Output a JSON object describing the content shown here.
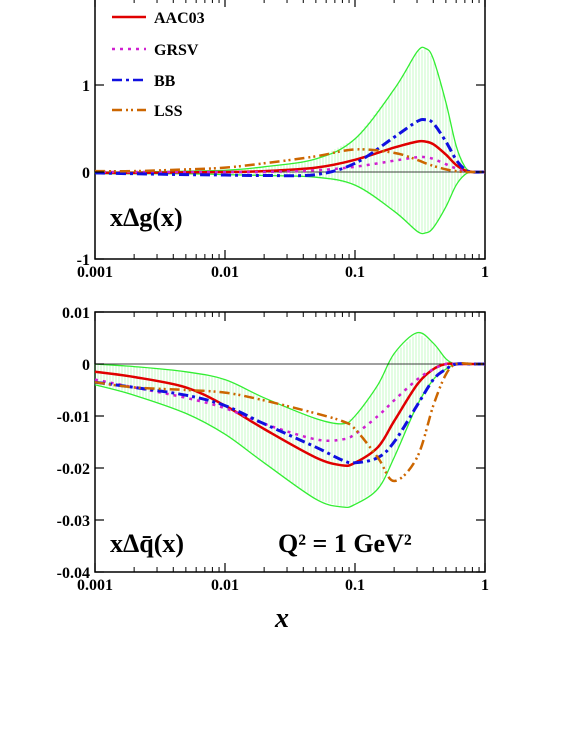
{
  "colors": {
    "AAC03": "#e00000",
    "GRSV": "#d020d0",
    "BB": "#1010e0",
    "LSS": "#cc6600",
    "uncertainty_band": "#33ee33"
  },
  "chart_data": [
    {
      "type": "line",
      "panel_label": "xΔg(x)",
      "xscale": "log",
      "xlim": [
        0.001,
        1
      ],
      "ylim": [
        -1,
        2
      ],
      "x_ticks": [
        "0.001",
        "0.01",
        "0.1",
        "1"
      ],
      "y_ticks": [
        "-1",
        "0",
        "1"
      ],
      "legend": [
        "AAC03",
        "GRSV",
        "BB",
        "LSS"
      ],
      "legend_position": "top-left",
      "x": [
        0.001,
        0.002,
        0.005,
        0.01,
        0.02,
        0.05,
        0.1,
        0.2,
        0.3,
        0.35,
        0.4,
        0.5,
        0.6,
        0.7,
        0.8,
        1.0
      ],
      "series": [
        {
          "name": "AAC03",
          "values": [
            -0.01,
            -0.01,
            -0.005,
            0.0,
            0.01,
            0.05,
            0.14,
            0.28,
            0.35,
            0.35,
            0.32,
            0.2,
            0.08,
            0.02,
            0.0,
            0.0
          ]
        },
        {
          "name": "GRSV",
          "values": [
            0.0,
            0.0,
            0.0,
            0.0,
            0.0,
            0.02,
            0.06,
            0.13,
            0.17,
            0.17,
            0.15,
            0.09,
            0.04,
            0.01,
            0.0,
            0.0
          ]
        },
        {
          "name": "BB",
          "values": [
            -0.01,
            -0.02,
            -0.03,
            -0.035,
            -0.04,
            -0.03,
            0.1,
            0.4,
            0.58,
            0.6,
            0.56,
            0.35,
            0.14,
            0.03,
            0.0,
            0.0
          ]
        },
        {
          "name": "LSS",
          "values": [
            0.01,
            0.01,
            0.03,
            0.05,
            0.1,
            0.18,
            0.26,
            0.22,
            0.14,
            0.1,
            0.07,
            0.03,
            0.01,
            0.0,
            0.0,
            0.0
          ]
        }
      ],
      "band": {
        "upper": [
          0.0,
          0.0,
          0.01,
          0.02,
          0.06,
          0.15,
          0.38,
          0.95,
          1.38,
          1.42,
          1.3,
          0.8,
          0.3,
          0.06,
          0.0,
          0.0
        ],
        "lower": [
          -0.02,
          -0.02,
          -0.02,
          -0.03,
          -0.04,
          -0.06,
          -0.15,
          -0.45,
          -0.68,
          -0.7,
          -0.64,
          -0.4,
          -0.15,
          -0.03,
          0.0,
          0.0
        ]
      }
    },
    {
      "type": "line",
      "panel_label": "xΔq̄(x)",
      "annotation": "Q² = 1 GeV²",
      "xscale": "log",
      "xlim": [
        0.001,
        1
      ],
      "ylim": [
        -0.04,
        0.01
      ],
      "x_ticks": [
        "0.001",
        "0.01",
        "0.1",
        "1"
      ],
      "y_ticks": [
        "-0.04",
        "-0.03",
        "-0.02",
        "-0.01",
        "0",
        "0.01"
      ],
      "xlabel": "x",
      "x": [
        0.001,
        0.002,
        0.005,
        0.01,
        0.02,
        0.05,
        0.08,
        0.1,
        0.15,
        0.2,
        0.3,
        0.4,
        0.5,
        0.6,
        0.8,
        1.0
      ],
      "series": [
        {
          "name": "AAC03",
          "values": [
            -0.0015,
            -0.0025,
            -0.0045,
            -0.008,
            -0.0125,
            -0.018,
            -0.0195,
            -0.019,
            -0.016,
            -0.011,
            -0.004,
            -0.001,
            0.0,
            0.0,
            0.0,
            0.0
          ]
        },
        {
          "name": "GRSV",
          "values": [
            -0.003,
            -0.0045,
            -0.0065,
            -0.0085,
            -0.0115,
            -0.0145,
            -0.0145,
            -0.0135,
            -0.01,
            -0.007,
            -0.003,
            -0.001,
            0.0,
            0.0,
            0.0,
            0.0
          ]
        },
        {
          "name": "BB",
          "values": [
            -0.0035,
            -0.0045,
            -0.006,
            -0.008,
            -0.0115,
            -0.016,
            -0.0185,
            -0.019,
            -0.018,
            -0.015,
            -0.008,
            -0.003,
            -0.001,
            0.0,
            0.0,
            0.0
          ]
        },
        {
          "name": "LSS",
          "values": [
            -0.0035,
            -0.0045,
            -0.005,
            -0.0055,
            -0.007,
            -0.0095,
            -0.011,
            -0.0125,
            -0.018,
            -0.0225,
            -0.018,
            -0.008,
            -0.002,
            0.0,
            0.0,
            0.0
          ]
        }
      ],
      "band": {
        "upper": [
          0.0,
          -0.0005,
          -0.0015,
          -0.003,
          -0.0065,
          -0.0105,
          -0.0115,
          -0.01,
          -0.004,
          0.002,
          0.006,
          0.004,
          0.001,
          0.0,
          0.0,
          0.0
        ],
        "lower": [
          -0.004,
          -0.006,
          -0.0095,
          -0.0135,
          -0.019,
          -0.026,
          -0.0275,
          -0.027,
          -0.024,
          -0.018,
          -0.008,
          -0.003,
          -0.001,
          0.0,
          0.0,
          0.0
        ]
      }
    }
  ]
}
